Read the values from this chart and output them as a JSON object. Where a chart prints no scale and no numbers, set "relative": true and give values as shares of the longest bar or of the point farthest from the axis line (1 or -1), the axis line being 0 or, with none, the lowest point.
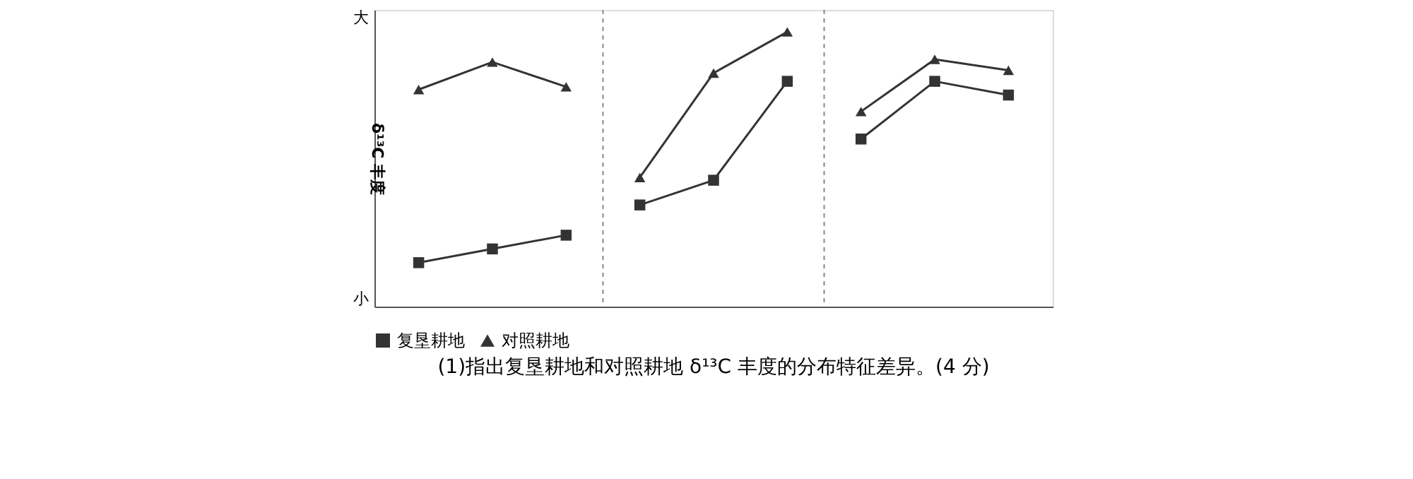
{
  "chart_data": {
    "type": "line",
    "relative": true,
    "ylabel": "δ¹³C 丰度",
    "categories": [
      null,
      null,
      null,
      null,
      null,
      null,
      null,
      null,
      null
    ],
    "tick_labels": false,
    "legend": "bottom",
    "line_style": "solid",
    "annotations": [
      "大",
      "小",
      "(1)指出复垦耕地和对照耕地 δ¹³C 丰度的分布特征差异。(4 分)"
    ],
    "series": [
      {
        "name": "复垦耕地",
        "color": "#333333",
        "marker": "square",
        "values": [
          0.16,
          0.21,
          0.26,
          null,
          null,
          null,
          null,
          null,
          null
        ]
      },
      {
        "name": "对照耕地",
        "color": "#333333",
        "marker": "triangle",
        "values": [
          0.79,
          0.89,
          0.8,
          null,
          null,
          null,
          null,
          null,
          null
        ]
      },
      {
        "color": "#333333",
        "marker": "square",
        "values": [
          null,
          null,
          null,
          0.37,
          0.46,
          0.82,
          null,
          null,
          null
        ]
      },
      {
        "color": "#333333",
        "marker": "triangle",
        "values": [
          null,
          null,
          null,
          0.47,
          0.85,
          1.0,
          null,
          null,
          null
        ]
      },
      {
        "color": "#333333",
        "marker": "square",
        "values": [
          null,
          null,
          null,
          null,
          null,
          null,
          0.61,
          0.82,
          0.77
        ]
      },
      {
        "color": "#333333",
        "marker": "triangle",
        "values": [
          null,
          null,
          null,
          null,
          null,
          null,
          0.71,
          0.9,
          0.86
        ]
      }
    ]
  }
}
